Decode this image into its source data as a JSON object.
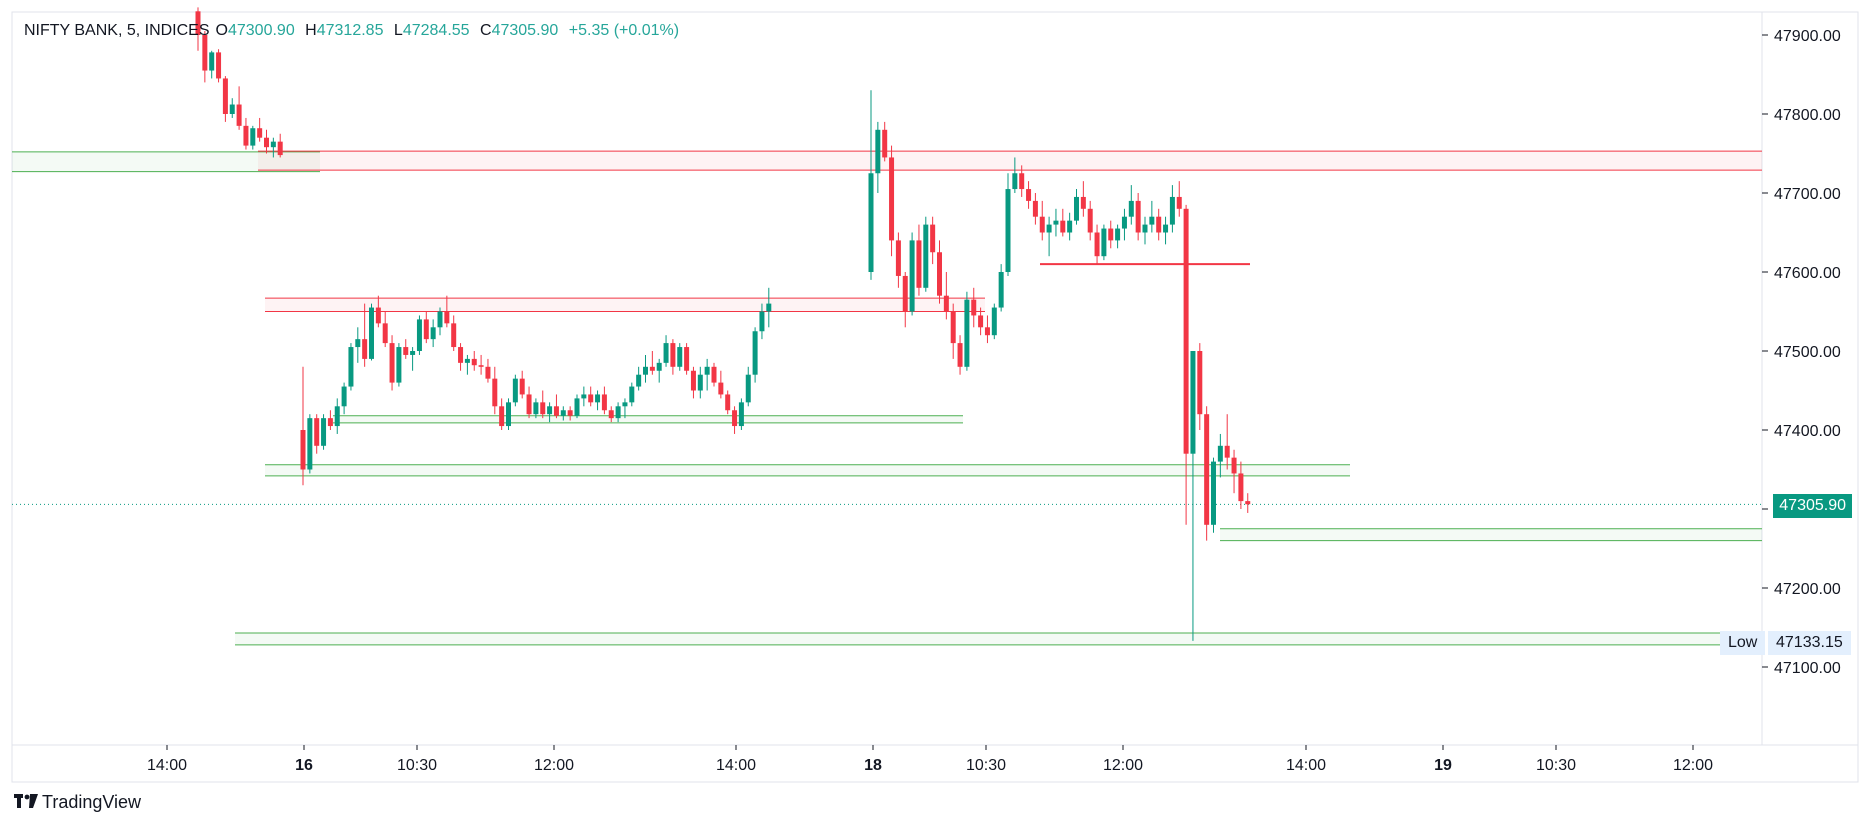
{
  "legend": {
    "symbol": "NIFTY BANK, 5, INDICES",
    "o_label": "O",
    "o": "47300.90",
    "h_label": "H",
    "h": "47312.85",
    "l_label": "L",
    "l": "47284.55",
    "c_label": "C",
    "c": "47305.90",
    "change": "+5.35 (+0.01%)"
  },
  "brand": "TradingView",
  "price_badge": "47305.90",
  "low_label": "Low",
  "low_value": "47133.15",
  "colors": {
    "up": "#089981",
    "down": "#f23645",
    "zone_red": "#f23645",
    "zone_green": "#4caf50"
  },
  "chart_data": {
    "type": "candlestick",
    "symbol": "NIFTY BANK",
    "interval": "5",
    "ylim": [
      47000,
      47950
    ],
    "y_ticks": [
      "47900.00",
      "47800.00",
      "47700.00",
      "47600.00",
      "47500.00",
      "47400.00",
      "47300.00",
      "47200.00",
      "47100.00"
    ],
    "x_ticks": [
      {
        "label": "14:00",
        "bold": false
      },
      {
        "label": "16",
        "bold": true
      },
      {
        "label": "10:30",
        "bold": false
      },
      {
        "label": "12:00",
        "bold": false
      },
      {
        "label": "14:00",
        "bold": false
      },
      {
        "label": "18",
        "bold": true
      },
      {
        "label": "10:30",
        "bold": false
      },
      {
        "label": "12:00",
        "bold": false
      },
      {
        "label": "14:00",
        "bold": false
      },
      {
        "label": "19",
        "bold": true
      },
      {
        "label": "10:30",
        "bold": false
      },
      {
        "label": "12:00",
        "bold": false
      }
    ],
    "current_price": 47305.9,
    "session_low": 47133.15,
    "series": [
      {
        "name": "day1",
        "candles": [
          [
            47930,
            47935,
            47880,
            47900
          ],
          [
            47900,
            47905,
            47840,
            47855
          ],
          [
            47855,
            47880,
            47845,
            47878
          ],
          [
            47878,
            47882,
            47840,
            47845
          ],
          [
            47845,
            47848,
            47790,
            47800
          ],
          [
            47800,
            47820,
            47795,
            47812
          ],
          [
            47812,
            47835,
            47780,
            47785
          ],
          [
            47785,
            47795,
            47755,
            47760
          ],
          [
            47760,
            47785,
            47755,
            47782
          ],
          [
            47782,
            47795,
            47765,
            47770
          ],
          [
            47770,
            47780,
            47750,
            47758
          ],
          [
            47758,
            47770,
            47745,
            47765
          ],
          [
            47765,
            47775,
            47745,
            47748
          ]
        ]
      },
      {
        "name": "day2",
        "candles": [
          [
            47400,
            47480,
            47330,
            47350
          ],
          [
            47350,
            47420,
            47345,
            47415
          ],
          [
            47415,
            47420,
            47370,
            47380
          ],
          [
            47380,
            47420,
            47375,
            47415
          ],
          [
            47415,
            47425,
            47400,
            47405
          ],
          [
            47405,
            47440,
            47395,
            47430
          ],
          [
            47430,
            47460,
            47420,
            47455
          ],
          [
            47455,
            47510,
            47450,
            47505
          ],
          [
            47505,
            47530,
            47485,
            47515
          ],
          [
            47515,
            47560,
            47480,
            47490
          ],
          [
            47490,
            47560,
            47488,
            47555
          ],
          [
            47555,
            47570,
            47530,
            47535
          ],
          [
            47535,
            47550,
            47505,
            47510
          ],
          [
            47510,
            47520,
            47450,
            47460
          ],
          [
            47460,
            47510,
            47455,
            47505
          ],
          [
            47505,
            47515,
            47490,
            47495
          ],
          [
            47495,
            47505,
            47475,
            47500
          ],
          [
            47500,
            47545,
            47495,
            47540
          ],
          [
            47540,
            47550,
            47510,
            47515
          ],
          [
            47515,
            47540,
            47505,
            47530
          ],
          [
            47530,
            47555,
            47520,
            47550
          ],
          [
            47550,
            47570,
            47530,
            47535
          ],
          [
            47535,
            47545,
            47500,
            47505
          ],
          [
            47505,
            47510,
            47475,
            47485
          ],
          [
            47485,
            47495,
            47470,
            47490
          ],
          [
            47490,
            47500,
            47475,
            47482
          ],
          [
            47482,
            47495,
            47470,
            47480
          ],
          [
            47480,
            47490,
            47460,
            47465
          ],
          [
            47465,
            47480,
            47420,
            47430
          ],
          [
            47430,
            47440,
            47400,
            47405
          ],
          [
            47405,
            47440,
            47400,
            47435
          ],
          [
            47435,
            47470,
            47430,
            47465
          ],
          [
            47465,
            47475,
            47440,
            47445
          ],
          [
            47445,
            47455,
            47415,
            47420
          ],
          [
            47420,
            47440,
            47415,
            47435
          ],
          [
            47435,
            47450,
            47415,
            47420
          ],
          [
            47420,
            47435,
            47410,
            47430
          ],
          [
            47430,
            47445,
            47415,
            47418
          ],
          [
            47418,
            47430,
            47412,
            47425
          ],
          [
            47425,
            47430,
            47412,
            47418
          ],
          [
            47418,
            47445,
            47415,
            47440
          ],
          [
            47440,
            47455,
            47430,
            47445
          ],
          [
            47445,
            47455,
            47430,
            47435
          ],
          [
            47435,
            47450,
            47425,
            47445
          ],
          [
            47445,
            47455,
            47420,
            47425
          ],
          [
            47425,
            47430,
            47410,
            47415
          ],
          [
            47415,
            47435,
            47410,
            47430
          ],
          [
            47430,
            47440,
            47415,
            47435
          ],
          [
            47435,
            47460,
            47430,
            47455
          ],
          [
            47455,
            47480,
            47450,
            47470
          ],
          [
            47470,
            47495,
            47460,
            47480
          ],
          [
            47480,
            47500,
            47470,
            47475
          ],
          [
            47475,
            47490,
            47460,
            47485
          ],
          [
            47485,
            47520,
            47480,
            47510
          ],
          [
            47510,
            47515,
            47470,
            47480
          ],
          [
            47480,
            47510,
            47475,
            47505
          ],
          [
            47505,
            47510,
            47470,
            47475
          ],
          [
            47475,
            47480,
            47440,
            47450
          ],
          [
            47450,
            47480,
            47440,
            47470
          ],
          [
            47470,
            47490,
            47450,
            47480
          ],
          [
            47480,
            47485,
            47455,
            47460
          ],
          [
            47460,
            47475,
            47440,
            47445
          ],
          [
            47445,
            47450,
            47420,
            47425
          ],
          [
            47425,
            47430,
            47395,
            47405
          ],
          [
            47405,
            47440,
            47400,
            47435
          ],
          [
            47435,
            47480,
            47430,
            47470
          ],
          [
            47470,
            47530,
            47460,
            47525
          ],
          [
            47525,
            47560,
            47515,
            47550
          ],
          [
            47550,
            47580,
            47530,
            47560
          ]
        ]
      },
      {
        "name": "day3",
        "candles": [
          [
            47600,
            47830,
            47590,
            47725
          ],
          [
            47725,
            47790,
            47700,
            47780
          ],
          [
            47780,
            47790,
            47740,
            47745
          ],
          [
            47745,
            47760,
            47620,
            47640
          ],
          [
            47640,
            47650,
            47580,
            47595
          ],
          [
            47595,
            47600,
            47530,
            47550
          ],
          [
            47550,
            47650,
            47545,
            47640
          ],
          [
            47640,
            47660,
            47570,
            47580
          ],
          [
            47580,
            47670,
            47575,
            47660
          ],
          [
            47660,
            47670,
            47610,
            47625
          ],
          [
            47625,
            47640,
            47560,
            47570
          ],
          [
            47570,
            47600,
            47540,
            47550
          ],
          [
            47550,
            47560,
            47490,
            47510
          ],
          [
            47510,
            47520,
            47470,
            47480
          ],
          [
            47480,
            47575,
            47475,
            47565
          ],
          [
            47565,
            47580,
            47530,
            47545
          ],
          [
            47545,
            47555,
            47520,
            47530
          ],
          [
            47530,
            47545,
            47510,
            47520
          ],
          [
            47520,
            47560,
            47515,
            47555
          ],
          [
            47555,
            47610,
            47550,
            47600
          ],
          [
            47600,
            47725,
            47595,
            47705
          ],
          [
            47705,
            47745,
            47700,
            47725
          ],
          [
            47725,
            47735,
            47695,
            47705
          ],
          [
            47705,
            47715,
            47680,
            47690
          ],
          [
            47690,
            47700,
            47660,
            47670
          ],
          [
            47670,
            47690,
            47640,
            47650
          ],
          [
            47650,
            47670,
            47620,
            47660
          ],
          [
            47660,
            47680,
            47645,
            47665
          ],
          [
            47665,
            47680,
            47645,
            47650
          ],
          [
            47650,
            47675,
            47640,
            47665
          ],
          [
            47665,
            47705,
            47660,
            47695
          ],
          [
            47695,
            47715,
            47670,
            47680
          ],
          [
            47680,
            47690,
            47640,
            47650
          ],
          [
            47650,
            47660,
            47610,
            47620
          ],
          [
            47620,
            47660,
            47615,
            47655
          ],
          [
            47655,
            47665,
            47630,
            47640
          ],
          [
            47640,
            47660,
            47630,
            47655
          ],
          [
            47655,
            47680,
            47640,
            47670
          ],
          [
            47670,
            47710,
            47660,
            47690
          ],
          [
            47690,
            47700,
            47640,
            47650
          ],
          [
            47650,
            47670,
            47635,
            47660
          ],
          [
            47660,
            47690,
            47650,
            47670
          ],
          [
            47670,
            47680,
            47640,
            47650
          ],
          [
            47650,
            47670,
            47635,
            47660
          ],
          [
            47660,
            47710,
            47650,
            47695
          ],
          [
            47695,
            47715,
            47670,
            47680
          ],
          [
            47680,
            47685,
            47280,
            47370
          ],
          [
            47370,
            47500,
            47133,
            47500
          ],
          [
            47500,
            47510,
            47400,
            47420
          ],
          [
            47420,
            47430,
            47260,
            47280
          ],
          [
            47280,
            47365,
            47270,
            47360
          ],
          [
            47360,
            47395,
            47340,
            47380
          ],
          [
            47380,
            47420,
            47350,
            47365
          ],
          [
            47365,
            47375,
            47320,
            47345
          ],
          [
            47345,
            47360,
            47300,
            47310
          ],
          [
            47310,
            47320,
            47295,
            47306
          ]
        ]
      }
    ],
    "zones": [
      {
        "color": "green",
        "y1": 47752,
        "y2": 47727
      },
      {
        "color": "red",
        "y1": 47753,
        "y2": 47729
      },
      {
        "color": "red",
        "y1": 47567,
        "y2": 47550
      },
      {
        "color": "green",
        "y1": 47418,
        "y2": 47409
      },
      {
        "color": "green",
        "y1": 47356,
        "y2": 47342
      },
      {
        "color": "green",
        "y1": 47275,
        "y2": 47260
      },
      {
        "color": "green",
        "y1": 47143,
        "y2": 47128
      }
    ]
  }
}
